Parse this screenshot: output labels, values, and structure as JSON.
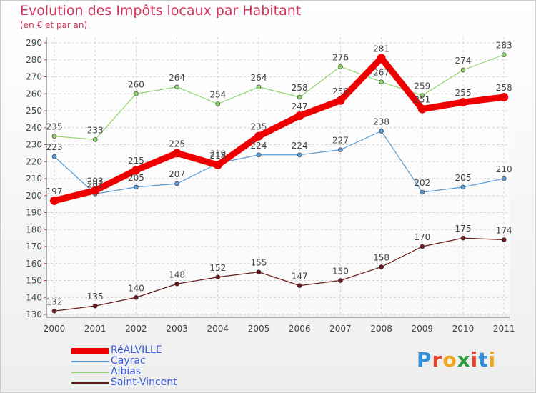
{
  "header": {
    "title": "Evolution des Impôts locaux par Habitant",
    "subtitle": "(en € et par an)"
  },
  "brand": {
    "text": "Proxiti",
    "colors": [
      "#2f8fd8",
      "#e8412b",
      "#f0a81d",
      "#2a9d3d",
      "#e8412b",
      "#2f8fd8",
      "#f0a81d"
    ]
  },
  "chart_data": {
    "type": "line",
    "x": [
      "2000",
      "2001",
      "2002",
      "2003",
      "2004",
      "2005",
      "2006",
      "2007",
      "2008",
      "2009",
      "2010",
      "2011"
    ],
    "ylim": [
      130,
      290
    ],
    "yticks": [
      130,
      140,
      150,
      160,
      170,
      180,
      190,
      200,
      210,
      220,
      230,
      240,
      250,
      260,
      270,
      280,
      290
    ],
    "grid": true,
    "legend_position": "bottom-left",
    "series": [
      {
        "name": "RéALVILLE",
        "color": "#ee0000",
        "width": 9,
        "marker": 6,
        "values": [
          197,
          203,
          215,
          225,
          218,
          235,
          247,
          256,
          281,
          251,
          255,
          258
        ]
      },
      {
        "name": "Cayrac",
        "color": "#5b9bd5",
        "width": 1.2,
        "marker": 3,
        "values": [
          223,
          201,
          205,
          207,
          219,
          224,
          224,
          227,
          238,
          202,
          205,
          210
        ]
      },
      {
        "name": "Albias",
        "color": "#8fd46b",
        "width": 1.2,
        "marker": 3,
        "values": [
          235,
          233,
          260,
          264,
          254,
          264,
          258,
          276,
          267,
          259,
          274,
          283
        ]
      },
      {
        "name": "Saint-Vincent",
        "color": "#6b1a1a",
        "width": 1.2,
        "marker": 3,
        "values": [
          132,
          135,
          140,
          148,
          152,
          155,
          147,
          150,
          158,
          170,
          175,
          174
        ]
      }
    ]
  }
}
